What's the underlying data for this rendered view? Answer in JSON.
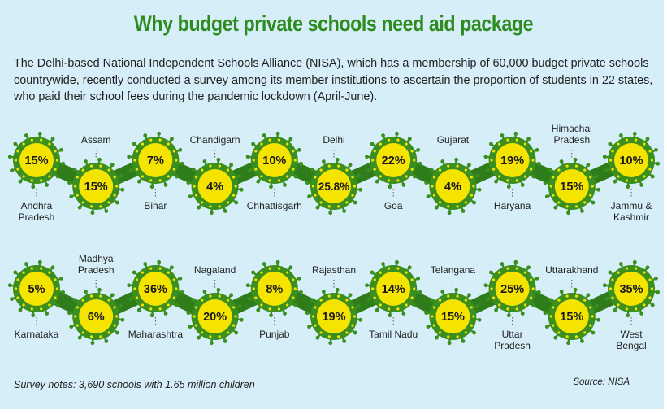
{
  "title": "Why budget private schools need aid package",
  "intro": "The Delhi-based National Independent Schools Alliance (NISA), which has a membership of 60,000 budget private schools countrywide, recently conducted a survey among its member institutions to ascertain the proportion of students in 22 states, who paid their school fees during the pandemic lockdown (April-June).",
  "notes": "Survey notes: 3,690 schools with 1.65 million children",
  "source": "Source: NISA",
  "colors": {
    "chain": "#2e7d1a",
    "virus_ring": "#3a8f1e",
    "virus_core": "#f5e300",
    "title": "#2e8b1f",
    "panel": "#d6eef8"
  },
  "chart_data": {
    "type": "table",
    "unit": "%",
    "rows": [
      [
        {
          "state": "Andhra Pradesh",
          "lines": [
            "Andhra",
            "Pradesh"
          ],
          "value": 15,
          "label": "15%"
        },
        {
          "state": "Assam",
          "lines": [
            "Assam"
          ],
          "value": 15,
          "label": "15%"
        },
        {
          "state": "Bihar",
          "lines": [
            "Bihar"
          ],
          "value": 7,
          "label": "7%"
        },
        {
          "state": "Chandigarh",
          "lines": [
            "Chandigarh"
          ],
          "value": 4,
          "label": "4%"
        },
        {
          "state": "Chhattisgarh",
          "lines": [
            "Chhattisgarh"
          ],
          "value": 10,
          "label": "10%"
        },
        {
          "state": "Delhi",
          "lines": [
            "Delhi"
          ],
          "value": 25.8,
          "label": "25.8%"
        },
        {
          "state": "Goa",
          "lines": [
            "Goa"
          ],
          "value": 22,
          "label": "22%"
        },
        {
          "state": "Gujarat",
          "lines": [
            "Gujarat"
          ],
          "value": 4,
          "label": "4%"
        },
        {
          "state": "Haryana",
          "lines": [
            "Haryana"
          ],
          "value": 19,
          "label": "19%"
        },
        {
          "state": "Himachal Pradesh",
          "lines": [
            "Himachal",
            "Pradesh"
          ],
          "value": 15,
          "label": "15%"
        },
        {
          "state": "Jammu & Kashmir",
          "lines": [
            "Jammu &",
            "Kashmir"
          ],
          "value": 10,
          "label": "10%"
        }
      ],
      [
        {
          "state": "Karnataka",
          "lines": [
            "Karnataka"
          ],
          "value": 5,
          "label": "5%"
        },
        {
          "state": "Madhya Pradesh",
          "lines": [
            "Madhya",
            "Pradesh"
          ],
          "value": 6,
          "label": "6%"
        },
        {
          "state": "Maharashtra",
          "lines": [
            "Maharashtra"
          ],
          "value": 36,
          "label": "36%"
        },
        {
          "state": "Nagaland",
          "lines": [
            "Nagaland"
          ],
          "value": 20,
          "label": "20%"
        },
        {
          "state": "Punjab",
          "lines": [
            "Punjab"
          ],
          "value": 8,
          "label": "8%"
        },
        {
          "state": "Rajasthan",
          "lines": [
            "Rajasthan"
          ],
          "value": 19,
          "label": "19%"
        },
        {
          "state": "Tamil Nadu",
          "lines": [
            "Tamil Nadu"
          ],
          "value": 14,
          "label": "14%"
        },
        {
          "state": "Telangana",
          "lines": [
            "Telangana"
          ],
          "value": 15,
          "label": "15%"
        },
        {
          "state": "Uttar Pradesh",
          "lines": [
            "Uttar",
            "Pradesh"
          ],
          "value": 25,
          "label": "25%"
        },
        {
          "state": "Uttarakhand",
          "lines": [
            "Uttarakhand"
          ],
          "value": 15,
          "label": "15%"
        },
        {
          "state": "West Bengal",
          "lines": [
            "West",
            "Bengal"
          ],
          "value": 35,
          "label": "35%"
        }
      ]
    ]
  }
}
